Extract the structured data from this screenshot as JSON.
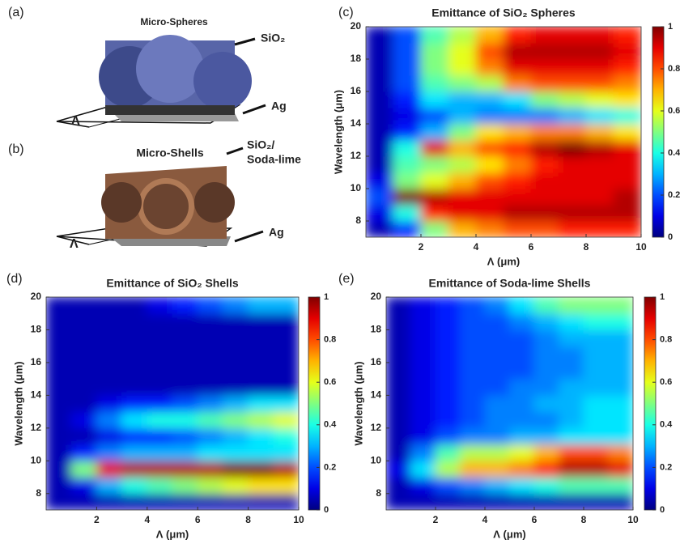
{
  "diagrams": [
    {
      "panel": "(a)",
      "title": "Micro-Spheres",
      "material": [
        "SiO₂"
      ],
      "substrate": "Ag",
      "period": "Λ"
    },
    {
      "panel": "(b)",
      "title": "Micro-Shells",
      "material": [
        "SiO₂/",
        "Soda-lime"
      ],
      "substrate": "Ag",
      "period": "Λ"
    }
  ],
  "chart_data": [
    {
      "type": "heatmap",
      "panel": "(c)",
      "title": "Emittance of SiO₂ Spheres",
      "x_label": "Λ (μm)",
      "y_label": "Wavelength (μm)",
      "colormap": "jet",
      "xlim": [
        0,
        10
      ],
      "ylim": [
        7,
        20
      ],
      "xticks": [
        2,
        4,
        6,
        8,
        10
      ],
      "yticks": [
        8,
        10,
        12,
        14,
        16,
        18,
        20
      ],
      "clim": [
        0,
        1
      ],
      "cticks": [
        0,
        0.2,
        0.4,
        0.6,
        0.8,
        1
      ],
      "x": [
        0.5,
        1.5,
        2.5,
        3.5,
        4.5,
        5.5,
        6.5,
        7.5,
        8.5,
        9.5
      ],
      "y": [
        7.5,
        8.5,
        9.5,
        10.5,
        11.5,
        12.5,
        13.5,
        14.5,
        15.5,
        16.5,
        17.5,
        18.5,
        19.5
      ],
      "z": [
        [
          0.05,
          0.15,
          0.5,
          0.7,
          0.75,
          0.8,
          0.8,
          0.85,
          0.85,
          0.85
        ],
        [
          0.1,
          0.4,
          0.85,
          0.9,
          0.9,
          0.95,
          0.95,
          0.95,
          0.95,
          0.95
        ],
        [
          0.2,
          1,
          0.95,
          0.9,
          0.9,
          0.9,
          0.9,
          0.9,
          0.9,
          0.95
        ],
        [
          0.1,
          0.5,
          0.6,
          0.7,
          0.8,
          0.85,
          0.9,
          0.9,
          0.9,
          0.9
        ],
        [
          0.05,
          0.45,
          0.5,
          0.55,
          0.65,
          0.75,
          0.85,
          0.9,
          0.9,
          0.9
        ],
        [
          0.05,
          0.4,
          0.9,
          0.7,
          0.8,
          0.85,
          0.95,
          1,
          0.95,
          0.9
        ],
        [
          0.05,
          0.15,
          0.3,
          0.5,
          0.65,
          0.7,
          0.75,
          0.75,
          0.7,
          0.65
        ],
        [
          0.05,
          0.1,
          0.2,
          0.3,
          0.25,
          0.25,
          0.25,
          0.3,
          0.35,
          0.4
        ],
        [
          0.05,
          0.15,
          0.35,
          0.3,
          0.3,
          0.35,
          0.5,
          0.55,
          0.6,
          0.65
        ],
        [
          0.05,
          0.2,
          0.45,
          0.5,
          0.55,
          0.75,
          0.8,
          0.8,
          0.8,
          0.75
        ],
        [
          0.05,
          0.2,
          0.5,
          0.6,
          0.75,
          0.9,
          0.9,
          0.9,
          0.9,
          0.85
        ],
        [
          0.05,
          0.2,
          0.5,
          0.6,
          0.8,
          0.95,
          0.95,
          0.95,
          0.95,
          0.9
        ],
        [
          0.05,
          0.2,
          0.45,
          0.55,
          0.7,
          0.85,
          0.9,
          0.9,
          0.9,
          0.85
        ]
      ]
    },
    {
      "type": "heatmap",
      "panel": "(d)",
      "title": "Emittance of SiO₂ Shells",
      "x_label": "Λ (μm)",
      "y_label": "Wavelength (μm)",
      "colormap": "jet",
      "xlim": [
        0,
        10
      ],
      "ylim": [
        7,
        20
      ],
      "xticks": [
        2,
        4,
        6,
        8,
        10
      ],
      "yticks": [
        8,
        10,
        12,
        14,
        16,
        18,
        20
      ],
      "clim": [
        0,
        1
      ],
      "cticks": [
        0,
        0.2,
        0.4,
        0.6,
        0.8,
        1
      ],
      "x": [
        0.5,
        1.5,
        2.5,
        3.5,
        4.5,
        5.5,
        6.5,
        7.5,
        8.5,
        9.5
      ],
      "y": [
        7.5,
        8.5,
        9.5,
        10.5,
        11.5,
        12.5,
        13.5,
        14.5,
        15.5,
        16.5,
        17.5,
        18.5,
        19.5
      ],
      "z": [
        [
          0.05,
          0.05,
          0.05,
          0.05,
          0.05,
          0.05,
          0.05,
          0.05,
          0.05,
          0.05
        ],
        [
          0.05,
          0.1,
          0.3,
          0.4,
          0.45,
          0.5,
          0.55,
          0.6,
          0.65,
          0.65
        ],
        [
          0.05,
          0.5,
          0.9,
          0.95,
          0.95,
          0.95,
          0.95,
          1,
          1,
          0.95
        ],
        [
          0.05,
          0.15,
          0.25,
          0.3,
          0.3,
          0.3,
          0.35,
          0.35,
          0.35,
          0.35
        ],
        [
          0.05,
          0.05,
          0.1,
          0.15,
          0.15,
          0.2,
          0.25,
          0.3,
          0.35,
          0.4
        ],
        [
          0.05,
          0.1,
          0.25,
          0.35,
          0.4,
          0.4,
          0.45,
          0.5,
          0.55,
          0.6
        ],
        [
          0.05,
          0.05,
          0.1,
          0.15,
          0.15,
          0.2,
          0.25,
          0.3,
          0.35,
          0.35
        ],
        [
          0.05,
          0.05,
          0.05,
          0.05,
          0.05,
          0.05,
          0.05,
          0.05,
          0.05,
          0.05
        ],
        [
          0.05,
          0.05,
          0.05,
          0.05,
          0.05,
          0.05,
          0.05,
          0.05,
          0.05,
          0.05
        ],
        [
          0.05,
          0.05,
          0.05,
          0.05,
          0.05,
          0.05,
          0.05,
          0.05,
          0.05,
          0.05
        ],
        [
          0.05,
          0.05,
          0.05,
          0.05,
          0.05,
          0.05,
          0.05,
          0.05,
          0.05,
          0.05
        ],
        [
          0.05,
          0.05,
          0.05,
          0.05,
          0.05,
          0.05,
          0.05,
          0.05,
          0.05,
          0.05
        ],
        [
          0.05,
          0.05,
          0.05,
          0.05,
          0.1,
          0.15,
          0.2,
          0.25,
          0.3,
          0.3
        ]
      ]
    },
    {
      "type": "heatmap",
      "panel": "(e)",
      "title": "Emittance of Soda-lime Shells",
      "x_label": "Λ (μm)",
      "y_label": "Wavelength (μm)",
      "colormap": "jet",
      "xlim": [
        0,
        10
      ],
      "ylim": [
        7,
        20
      ],
      "xticks": [
        2,
        4,
        6,
        8,
        10
      ],
      "yticks": [
        8,
        10,
        12,
        14,
        16,
        18,
        20
      ],
      "clim": [
        0,
        1
      ],
      "cticks": [
        0,
        0.2,
        0.4,
        0.6,
        0.8,
        1
      ],
      "x": [
        0.5,
        1.5,
        2.5,
        3.5,
        4.5,
        5.5,
        6.5,
        7.5,
        8.5,
        9.5
      ],
      "y": [
        7.5,
        8.5,
        9.5,
        10.5,
        11.5,
        12.5,
        13.5,
        14.5,
        15.5,
        16.5,
        17.5,
        18.5,
        19.5
      ],
      "z": [
        [
          0.05,
          0.05,
          0.05,
          0.05,
          0.05,
          0.05,
          0.05,
          0.05,
          0.05,
          0.05
        ],
        [
          0.05,
          0.1,
          0.2,
          0.25,
          0.3,
          0.35,
          0.4,
          0.45,
          0.45,
          0.45
        ],
        [
          0.1,
          0.35,
          0.55,
          0.7,
          0.7,
          0.75,
          0.85,
          0.95,
          0.95,
          0.9
        ],
        [
          0.05,
          0.25,
          0.45,
          0.55,
          0.55,
          0.6,
          0.7,
          0.8,
          0.8,
          0.75
        ],
        [
          0.05,
          0.1,
          0.2,
          0.25,
          0.25,
          0.3,
          0.3,
          0.35,
          0.35,
          0.35
        ],
        [
          0.05,
          0.1,
          0.15,
          0.2,
          0.25,
          0.25,
          0.25,
          0.3,
          0.35,
          0.35
        ],
        [
          0.05,
          0.1,
          0.15,
          0.2,
          0.25,
          0.25,
          0.3,
          0.3,
          0.35,
          0.35
        ],
        [
          0.05,
          0.1,
          0.15,
          0.2,
          0.2,
          0.25,
          0.25,
          0.3,
          0.3,
          0.3
        ],
        [
          0.05,
          0.1,
          0.15,
          0.2,
          0.2,
          0.2,
          0.25,
          0.25,
          0.3,
          0.3
        ],
        [
          0.05,
          0.1,
          0.15,
          0.2,
          0.2,
          0.2,
          0.25,
          0.25,
          0.3,
          0.3
        ],
        [
          0.05,
          0.1,
          0.15,
          0.2,
          0.2,
          0.2,
          0.25,
          0.3,
          0.3,
          0.3
        ],
        [
          0.05,
          0.1,
          0.15,
          0.2,
          0.2,
          0.25,
          0.3,
          0.35,
          0.4,
          0.4
        ],
        [
          0.05,
          0.1,
          0.15,
          0.2,
          0.25,
          0.35,
          0.45,
          0.5,
          0.5,
          0.5
        ]
      ]
    }
  ]
}
